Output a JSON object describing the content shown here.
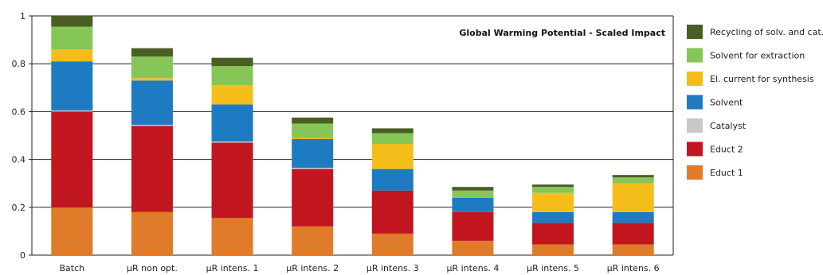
{
  "chart_data": {
    "type": "bar",
    "stacked": true,
    "title": "Global Warming Potential - Scaled Impact",
    "xlabel": "",
    "ylabel": "",
    "ylim": [
      0,
      1
    ],
    "yticks": [
      "0",
      "0.2",
      "0.4",
      "0.6",
      "0.8",
      "1"
    ],
    "grid": "y",
    "legend_position": "right",
    "categories": [
      "Batch",
      "µR non opt.",
      "µR intens. 1",
      "µR intens. 2",
      "µR intens. 3",
      "µR intens. 4",
      "µR intens. 5",
      "µR intens. 6"
    ],
    "series": [
      {
        "name": "Educt 1",
        "color": "#e07b2a",
        "values": [
          0.2,
          0.18,
          0.155,
          0.12,
          0.09,
          0.06,
          0.045,
          0.045
        ]
      },
      {
        "name": "Educt 2",
        "color": "#c1161f",
        "values": [
          0.4,
          0.36,
          0.315,
          0.24,
          0.18,
          0.12,
          0.09,
          0.09
        ]
      },
      {
        "name": "Catalyst",
        "color": "#c8c8c8",
        "values": [
          0.005,
          0.005,
          0.005,
          0.005,
          0.0,
          0.0,
          0.0,
          0.0
        ]
      },
      {
        "name": "Solvent",
        "color": "#1e7bc2",
        "values": [
          0.205,
          0.185,
          0.155,
          0.12,
          0.09,
          0.06,
          0.045,
          0.045
        ]
      },
      {
        "name": "El. current for synthesis",
        "color": "#f5bd1a",
        "values": [
          0.05,
          0.01,
          0.08,
          0.005,
          0.105,
          0.0,
          0.08,
          0.12
        ]
      },
      {
        "name": "Solvent for extraction",
        "color": "#86c657",
        "values": [
          0.095,
          0.09,
          0.08,
          0.06,
          0.045,
          0.03,
          0.025,
          0.025
        ]
      },
      {
        "name": "Recycling of solv. and cat.",
        "color": "#4a5e23",
        "values": [
          0.045,
          0.035,
          0.035,
          0.025,
          0.02,
          0.015,
          0.01,
          0.01
        ]
      }
    ]
  }
}
